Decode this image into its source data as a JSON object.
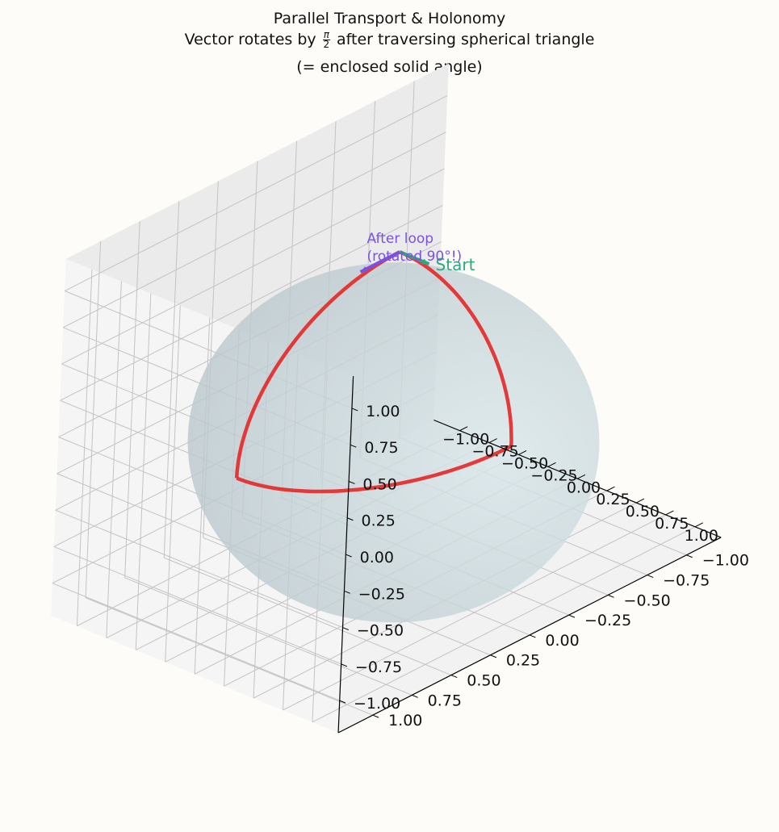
{
  "chart_data": {
    "type": "3d-line",
    "title_line1": "Parallel Transport & Holonomy",
    "title_line2_before": "Vector rotates by",
    "title_fraction_num": "π",
    "title_fraction_den": "2",
    "title_line2_after": "after traversing spherical triangle",
    "title_line3": "(= enclosed solid angle)",
    "xlim": [
      -1,
      1
    ],
    "ylim": [
      -1,
      1
    ],
    "zlim": [
      -1,
      1
    ],
    "ticks": [
      -1.0,
      -0.75,
      -0.5,
      -0.25,
      0.0,
      0.25,
      0.5,
      0.75,
      1.0
    ],
    "x_tick_labels": [
      "−1.00",
      "−0.75",
      "−0.50",
      "−0.25",
      "0.00",
      "0.25",
      "0.50",
      "0.75",
      "1.00"
    ],
    "y_tick_labels": [
      "−1.00",
      "−0.75",
      "−0.50",
      "−0.25",
      "0.00",
      "0.25",
      "0.50",
      "0.75",
      "1.00"
    ],
    "z_tick_labels": [
      "−1.00",
      "−0.75",
      "−0.50",
      "−0.25",
      "0.00",
      "0.25",
      "0.50",
      "0.75",
      "1.00"
    ],
    "grid": true,
    "sphere": {
      "radius": 1,
      "color": "#c9d8de"
    },
    "path": {
      "color": "#e52a2a",
      "loops": [
        {
          "from": [
            0,
            0,
            1
          ],
          "to": [
            1,
            0,
            0
          ]
        },
        {
          "from": [
            1,
            0,
            0
          ],
          "to": [
            0,
            1,
            0
          ]
        },
        {
          "from": [
            0,
            1,
            0
          ],
          "to": [
            0,
            0,
            1
          ]
        }
      ]
    },
    "vectors": [
      {
        "label": "Start",
        "color": "#2aaa80",
        "origin": [
          0,
          0,
          1
        ],
        "direction": [
          1,
          0,
          0
        ]
      },
      {
        "label": "After loop\n(rotated 90°!)",
        "color": "#7a52e0",
        "origin": [
          0,
          0,
          1
        ],
        "direction": [
          0,
          1,
          0
        ]
      }
    ]
  }
}
